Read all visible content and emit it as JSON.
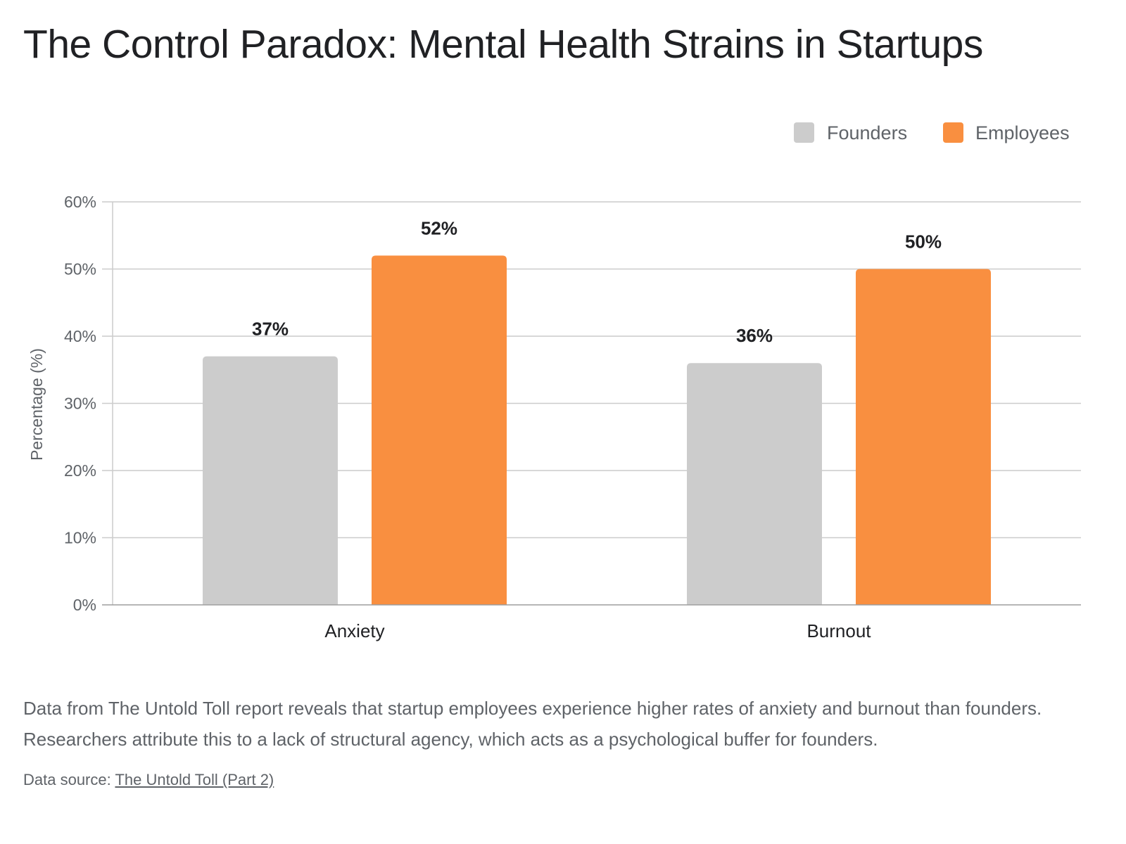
{
  "chart_data": {
    "type": "bar",
    "title": "The Control Paradox: Mental Health Strains in Startups",
    "xlabel": "",
    "ylabel": "Percentage (%)",
    "categories": [
      "Anxiety",
      "Burnout"
    ],
    "series": [
      {
        "name": "Founders",
        "values": [
          37,
          36
        ],
        "color": "#cccccc"
      },
      {
        "name": "Employees",
        "values": [
          52,
          50
        ],
        "color": "#f98f40"
      }
    ],
    "ylim": [
      0,
      60
    ],
    "yticks": [
      0,
      10,
      20,
      30,
      40,
      50,
      60
    ],
    "ytick_labels": [
      "0%",
      "10%",
      "20%",
      "30%",
      "40%",
      "50%",
      "60%"
    ],
    "data_labels": [
      [
        "37%",
        "36%"
      ],
      [
        "52%",
        "50%"
      ]
    ],
    "grid": true,
    "legend_position": "top-right"
  },
  "caption": "Data from The Untold Toll report reveals that startup employees experience higher rates of anxiety and burnout than founders. Researchers attribute this to a lack of structural agency, which acts as a psychological buffer for founders.",
  "source": {
    "prefix": "Data source: ",
    "link_text": "The Untold Toll (Part 2)"
  }
}
